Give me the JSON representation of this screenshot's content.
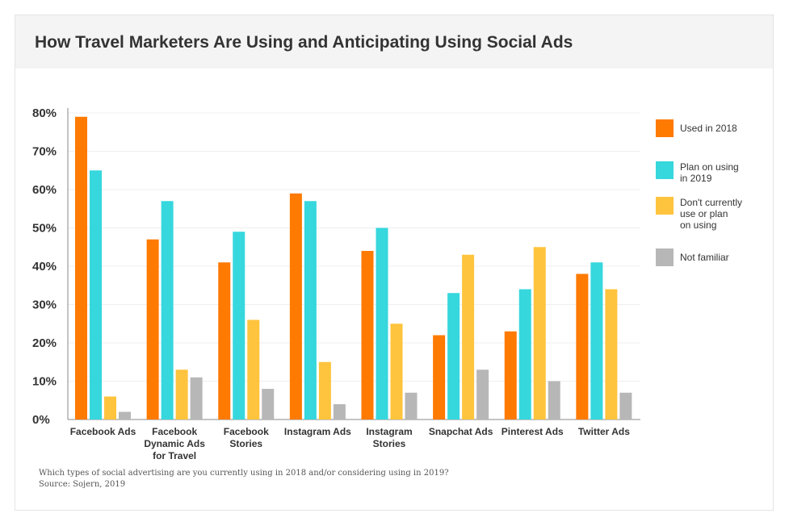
{
  "title": "How Travel Marketers Are Using and Anticipating Using Social Ads",
  "footer": {
    "question": "Which types of social advertising are you currently using in 2018 and/or considering using in 2019?",
    "source": "Source: Sojern, 2019"
  },
  "colors": {
    "used_2018": "#ff7a00",
    "plan_2019": "#36d7dd",
    "dont_use": "#ffc43d",
    "not_familiar": "#b7b7b7"
  },
  "chart_data": {
    "type": "bar",
    "title": "How Travel Marketers Are Using and Anticipating Using Social Ads",
    "xlabel": "",
    "ylabel": "",
    "ylim": [
      0,
      80
    ],
    "yticks": [
      "0%",
      "10%",
      "20%",
      "30%",
      "40%",
      "50%",
      "60%",
      "70%",
      "80%"
    ],
    "grid": true,
    "legend_position": "right",
    "categories": [
      [
        "Facebook Ads"
      ],
      [
        "Facebook",
        "Dynamic Ads",
        "for Travel"
      ],
      [
        "Facebook",
        "Stories"
      ],
      [
        "Instagram Ads"
      ],
      [
        "Instagram",
        "Stories"
      ],
      [
        "Snapchat Ads"
      ],
      [
        "Pinterest Ads"
      ],
      [
        "Twitter Ads"
      ]
    ],
    "series": [
      {
        "name": "Used in 2018",
        "label_lines": [
          "Used in 2018"
        ],
        "color": "#ff7a00",
        "values": [
          79,
          47,
          41,
          59,
          44,
          22,
          23,
          38
        ]
      },
      {
        "name": "Plan on using in 2019",
        "label_lines": [
          "Plan on using",
          "in 2019"
        ],
        "color": "#36d7dd",
        "values": [
          65,
          57,
          49,
          57,
          50,
          33,
          34,
          41
        ]
      },
      {
        "name": "Don't currently use or plan on using",
        "label_lines": [
          "Don't currently",
          "use or plan",
          "on using"
        ],
        "color": "#ffc43d",
        "values": [
          6,
          13,
          26,
          15,
          25,
          43,
          45,
          34
        ]
      },
      {
        "name": "Not familiar",
        "label_lines": [
          "Not familiar"
        ],
        "color": "#b7b7b7",
        "values": [
          2,
          11,
          8,
          4,
          7,
          13,
          10,
          7
        ]
      }
    ]
  }
}
